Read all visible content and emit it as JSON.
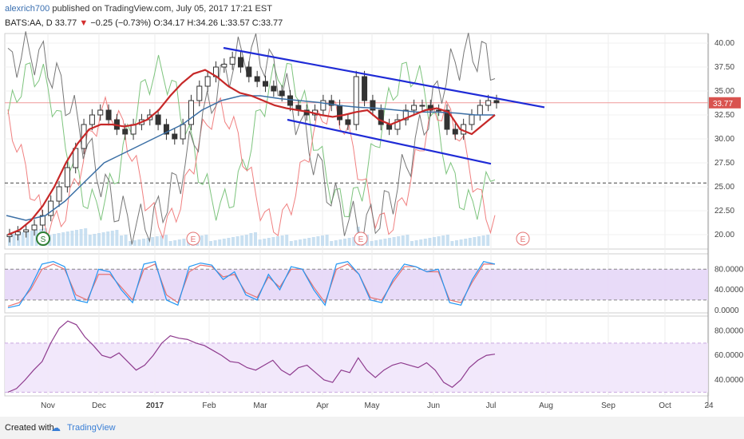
{
  "header": {
    "user": "alexrich700",
    "published": "published on TradingView.com, July 05, 2017 17:21 EST",
    "symbol": "BATS:AA, D",
    "last": "33.77",
    "arrow": "▼",
    "change": "−0.25 (−0.73%)",
    "ohlc": "O:34.17 H:34.26 L:33.57 C:33.77"
  },
  "footer": {
    "created": "Created with",
    "brand": "TradingView",
    "logo_icon": "tradingview-logo-icon"
  },
  "chart_data": [
    {
      "type": "candlestick",
      "symbol": "BATS:AA",
      "interval": "D",
      "yticks": [
        "40.00",
        "37.50",
        "35.00",
        "32.50",
        "30.00",
        "27.50",
        "25.00",
        "22.50",
        "20.00"
      ],
      "ylim": [
        18.5,
        41
      ],
      "xticks": [
        "Nov",
        "Dec",
        "2017",
        "Feb",
        "Mar",
        "Apr",
        "May",
        "Jun",
        "Jul",
        "Aug",
        "Sep",
        "Oct",
        "24"
      ],
      "last_price_label": "33.77",
      "last_price": 33.77,
      "dashed_level": 25.4,
      "event_markers": [
        {
          "label": "S",
          "x": "Nov"
        },
        {
          "label": "E",
          "x": "Jan"
        },
        {
          "label": "E",
          "x": "Apr end"
        },
        {
          "label": "E",
          "x": "Jul end"
        }
      ],
      "closes_approx": [
        20.0,
        20.3,
        20.5,
        21.0,
        22.0,
        23.5,
        25.0,
        27.0,
        29.0,
        31.5,
        32.5,
        33.0,
        32.0,
        31.0,
        30.5,
        31.5,
        32.0,
        32.5,
        31.5,
        30.5,
        30.0,
        31.5,
        34.0,
        35.5,
        36.5,
        37.5,
        37.8,
        38.5,
        37.5,
        36.5,
        36.0,
        35.5,
        35.0,
        34.5,
        33.5,
        33.0,
        32.5,
        33.0,
        34.0,
        33.5,
        32.0,
        31.5,
        36.5,
        34.0,
        33.0,
        31.5,
        31.0,
        32.0,
        33.0,
        33.5,
        33.5,
        33.0,
        33.0,
        31.0,
        30.5,
        31.5,
        32.5,
        33.5,
        34.0,
        33.77
      ],
      "ma_red_approx": [
        20.0,
        20.5,
        21.5,
        23.0,
        25.0,
        27.5,
        29.5,
        31.0,
        31.5,
        31.5,
        31.3,
        31.5,
        32.0,
        33.0,
        34.5,
        35.8,
        36.8,
        37.2,
        36.5,
        35.5,
        34.8,
        34.5,
        34.0,
        33.5,
        33.2,
        33.0,
        32.8,
        32.5,
        32.3,
        32.5,
        32.8,
        33.0,
        32.0,
        31.5,
        32.0,
        32.5,
        33.0,
        33.2,
        32.8,
        31.0,
        30.5,
        31.5,
        32.5
      ],
      "ma_blue_approx": [
        22.0,
        21.5,
        22.0,
        23.5,
        25.5,
        27.5,
        28.5,
        29.5,
        30.5,
        31.5,
        33.0,
        34.0,
        34.5,
        34.5,
        34.2,
        34.0,
        33.8,
        33.5,
        33.3,
        33.2,
        33.0,
        32.8,
        32.8,
        32.7,
        32.5,
        32.5
      ],
      "trend_lines": [
        {
          "name": "upper",
          "from": [
            "Feb",
            39.5
          ],
          "to": [
            "Jul end",
            33.3
          ]
        },
        {
          "name": "lower",
          "from": [
            "Mar",
            32.0
          ],
          "to": [
            "Jul",
            27.4
          ]
        }
      ]
    },
    {
      "type": "line",
      "name": "stochastic",
      "yticks": [
        "80.0000",
        "40.0000",
        "0.0000"
      ],
      "ylim": [
        -5,
        110
      ],
      "band": [
        20,
        80
      ],
      "k_approx": [
        5,
        10,
        45,
        90,
        95,
        85,
        20,
        15,
        80,
        75,
        40,
        15,
        90,
        95,
        20,
        10,
        85,
        92,
        88,
        60,
        75,
        30,
        20,
        70,
        40,
        85,
        80,
        40,
        10,
        90,
        95,
        70,
        20,
        15,
        60,
        90,
        85,
        75,
        80,
        15,
        10,
        60,
        95,
        90
      ],
      "d_approx": [
        8,
        15,
        40,
        80,
        90,
        80,
        30,
        20,
        70,
        70,
        45,
        20,
        80,
        90,
        30,
        15,
        75,
        88,
        85,
        65,
        70,
        35,
        25,
        65,
        45,
        80,
        80,
        45,
        15,
        80,
        90,
        70,
        25,
        20,
        55,
        85,
        85,
        75,
        75,
        20,
        15,
        55,
        90,
        90
      ]
    },
    {
      "type": "line",
      "name": "rsi",
      "yticks": [
        "80.0000",
        "60.0000",
        "40.0000"
      ],
      "ylim": [
        27,
        92
      ],
      "band": [
        30,
        70
      ],
      "values_approx": [
        30,
        33,
        40,
        48,
        55,
        70,
        82,
        88,
        85,
        75,
        68,
        60,
        58,
        62,
        55,
        48,
        52,
        60,
        70,
        76,
        74,
        73,
        70,
        68,
        64,
        60,
        55,
        54,
        50,
        48,
        52,
        56,
        48,
        44,
        50,
        52,
        46,
        40,
        38,
        48,
        46,
        58,
        48,
        42,
        48,
        52,
        54,
        52,
        50,
        54,
        48,
        38,
        34,
        40,
        50,
        56,
        60,
        61
      ]
    }
  ]
}
